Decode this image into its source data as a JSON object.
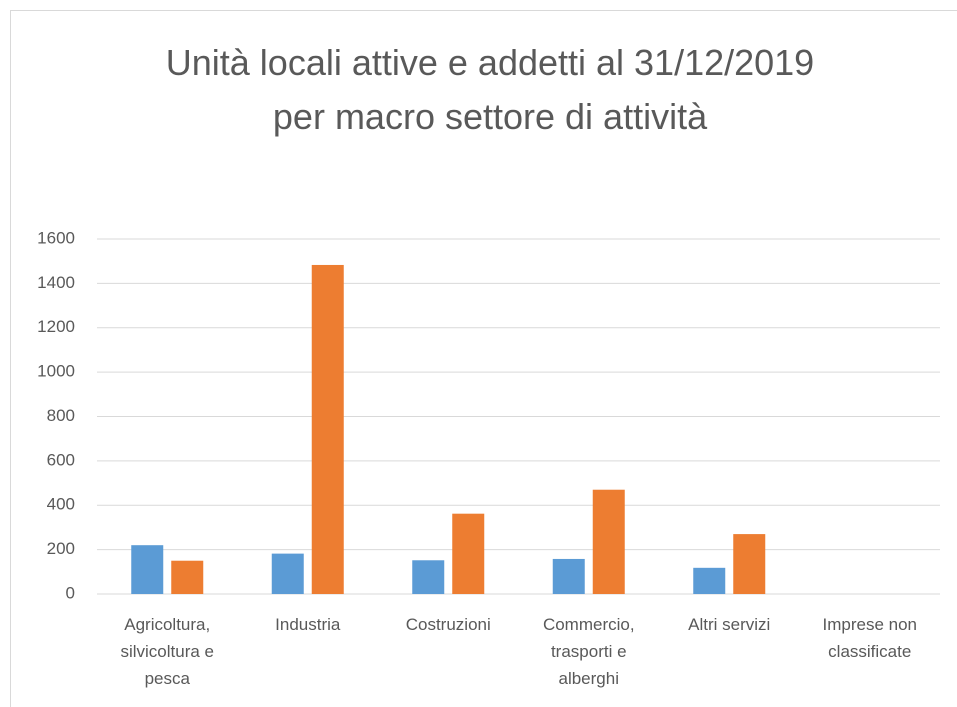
{
  "chart_data": {
    "type": "bar",
    "title": "Unità locali attive e addetti al 31/12/2019 per macro settore di attività",
    "categories": [
      "Agricoltura, silvicoltura e pesca",
      "Industria",
      "Costruzioni",
      "Commercio, trasporti e alberghi",
      "Altri servizi",
      "Imprese non classificate"
    ],
    "series": [
      {
        "color": "#5b9bd5",
        "values": [
          220,
          182,
          152,
          158,
          118,
          0
        ]
      },
      {
        "color": "#ed7d31",
        "values": [
          150,
          1483,
          362,
          470,
          270,
          0
        ]
      }
    ],
    "ylim": [
      0,
      1600
    ],
    "yticks": [
      0,
      200,
      400,
      600,
      800,
      1000,
      1200,
      1400,
      1600
    ],
    "grid": true
  }
}
